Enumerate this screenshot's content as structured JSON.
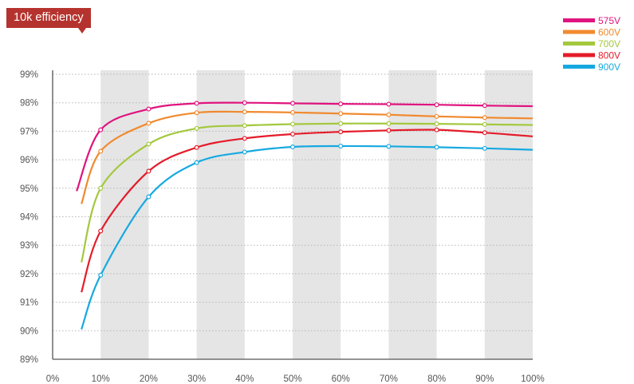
{
  "title": "10k efficiency",
  "chart_data": {
    "type": "line",
    "title": "10k efficiency",
    "xlabel": "",
    "ylabel": "",
    "xlim": [
      0,
      100
    ],
    "ylim": [
      89,
      99
    ],
    "x_ticks": [
      "0%",
      "10%",
      "20%",
      "30%",
      "40%",
      "50%",
      "60%",
      "70%",
      "80%",
      "90%",
      "100%"
    ],
    "y_ticks": [
      "89%",
      "90%",
      "91%",
      "92%",
      "93%",
      "94%",
      "95%",
      "96%",
      "97%",
      "98%",
      "99%"
    ],
    "grid": "horizontal dotted",
    "legend_position": "top-right",
    "shaded_bands": [
      [
        10,
        20
      ],
      [
        30,
        40
      ],
      [
        50,
        60
      ],
      [
        70,
        80
      ],
      [
        90,
        100
      ]
    ],
    "series": [
      {
        "name": "575V",
        "color": "#e0147f",
        "x": [
          5,
          10,
          20,
          30,
          40,
          50,
          60,
          70,
          80,
          90,
          100
        ],
        "y": [
          94.9,
          97.05,
          97.78,
          97.98,
          98.0,
          97.98,
          97.96,
          97.95,
          97.93,
          97.9,
          97.88
        ]
      },
      {
        "name": "600V",
        "color": "#f08a2f",
        "x": [
          6,
          10,
          20,
          30,
          40,
          50,
          60,
          70,
          80,
          90,
          100
        ],
        "y": [
          94.45,
          96.3,
          97.28,
          97.65,
          97.68,
          97.66,
          97.62,
          97.58,
          97.52,
          97.48,
          97.45
        ]
      },
      {
        "name": "700V",
        "color": "#a3c83d",
        "x": [
          6,
          10,
          20,
          30,
          40,
          50,
          60,
          70,
          80,
          90,
          100
        ],
        "y": [
          92.4,
          95.0,
          96.55,
          97.1,
          97.2,
          97.25,
          97.27,
          97.27,
          97.26,
          97.24,
          97.22
        ]
      },
      {
        "name": "800V",
        "color": "#e41c2a",
        "x": [
          6,
          10,
          20,
          30,
          40,
          50,
          60,
          70,
          80,
          90,
          100
        ],
        "y": [
          91.35,
          93.5,
          95.6,
          96.43,
          96.75,
          96.9,
          96.98,
          97.03,
          97.05,
          96.95,
          96.82
        ]
      },
      {
        "name": "900V",
        "color": "#16a9e1",
        "x": [
          6,
          10,
          20,
          30,
          40,
          50,
          60,
          70,
          80,
          90,
          100
        ],
        "y": [
          90.05,
          91.95,
          94.7,
          95.9,
          96.27,
          96.45,
          96.48,
          96.47,
          96.44,
          96.4,
          96.35
        ]
      }
    ]
  }
}
